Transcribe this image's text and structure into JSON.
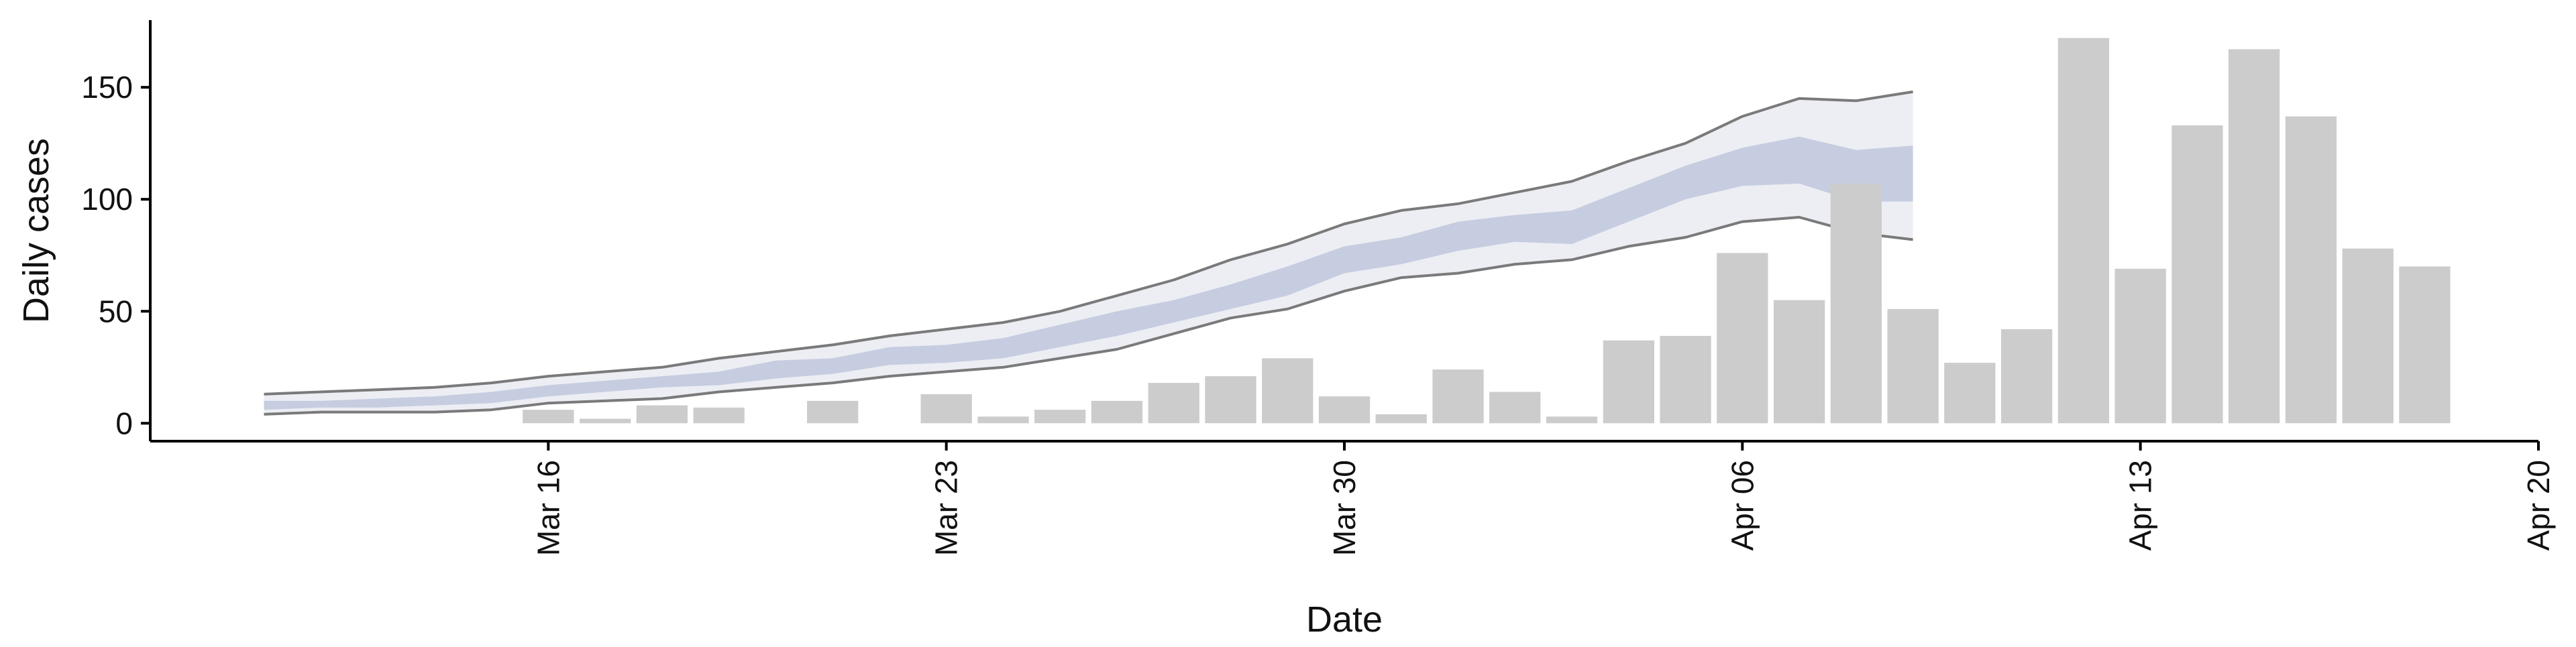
{
  "chart_data": {
    "type": "bar",
    "xlabel": "Date",
    "ylabel": "Daily cases",
    "xlim": [
      "2020-03-09",
      "2020-04-20"
    ],
    "ylim": [
      -8,
      180
    ],
    "x_ticks": [
      {
        "date": "2020-03-16",
        "label": "Mar 16"
      },
      {
        "date": "2020-03-23",
        "label": "Mar 23"
      },
      {
        "date": "2020-03-30",
        "label": "Mar 30"
      },
      {
        "date": "2020-04-06",
        "label": "Apr 06"
      },
      {
        "date": "2020-04-13",
        "label": "Apr 13"
      },
      {
        "date": "2020-04-20",
        "label": "Apr 20"
      }
    ],
    "y_ticks": [
      0,
      50,
      100,
      150
    ],
    "grid": false,
    "colors": {
      "bars": "#cccccc",
      "ribbon_outer": "#eceef4",
      "ribbon_inner": "#c7cde0",
      "bound_lines": "#7a7a7a",
      "axis": "#000000"
    },
    "daily_cases": [
      {
        "date": "2020-03-16",
        "value": 6
      },
      {
        "date": "2020-03-17",
        "value": 2
      },
      {
        "date": "2020-03-18",
        "value": 8
      },
      {
        "date": "2020-03-19",
        "value": 7
      },
      {
        "date": "2020-03-21",
        "value": 10
      },
      {
        "date": "2020-03-23",
        "value": 13
      },
      {
        "date": "2020-03-24",
        "value": 3
      },
      {
        "date": "2020-03-25",
        "value": 6
      },
      {
        "date": "2020-03-26",
        "value": 10
      },
      {
        "date": "2020-03-27",
        "value": 18
      },
      {
        "date": "2020-03-28",
        "value": 21
      },
      {
        "date": "2020-03-29",
        "value": 29
      },
      {
        "date": "2020-03-30",
        "value": 12
      },
      {
        "date": "2020-03-31",
        "value": 4
      },
      {
        "date": "2020-04-01",
        "value": 24
      },
      {
        "date": "2020-04-02",
        "value": 14
      },
      {
        "date": "2020-04-03",
        "value": 3
      },
      {
        "date": "2020-04-04",
        "value": 37
      },
      {
        "date": "2020-04-05",
        "value": 39
      },
      {
        "date": "2020-04-06",
        "value": 76
      },
      {
        "date": "2020-04-07",
        "value": 55
      },
      {
        "date": "2020-04-08",
        "value": 107
      },
      {
        "date": "2020-04-09",
        "value": 51
      },
      {
        "date": "2020-04-10",
        "value": 27
      },
      {
        "date": "2020-04-11",
        "value": 42
      },
      {
        "date": "2020-04-12",
        "value": 172
      },
      {
        "date": "2020-04-13",
        "value": 69
      },
      {
        "date": "2020-04-14",
        "value": 133
      },
      {
        "date": "2020-04-15",
        "value": 167
      },
      {
        "date": "2020-04-16",
        "value": 137
      },
      {
        "date": "2020-04-17",
        "value": 78
      },
      {
        "date": "2020-04-18",
        "value": 70
      }
    ],
    "estimate_band": {
      "dates": [
        "2020-03-11",
        "2020-03-12",
        "2020-03-13",
        "2020-03-14",
        "2020-03-15",
        "2020-03-16",
        "2020-03-17",
        "2020-03-18",
        "2020-03-19",
        "2020-03-20",
        "2020-03-21",
        "2020-03-22",
        "2020-03-23",
        "2020-03-24",
        "2020-03-25",
        "2020-03-26",
        "2020-03-27",
        "2020-03-28",
        "2020-03-29",
        "2020-03-30",
        "2020-03-31",
        "2020-04-01",
        "2020-04-02",
        "2020-04-03",
        "2020-04-04",
        "2020-04-05",
        "2020-04-06",
        "2020-04-07",
        "2020-04-08",
        "2020-04-09"
      ],
      "upper_90": [
        13,
        14,
        15,
        16,
        18,
        21,
        23,
        25,
        29,
        32,
        35,
        39,
        42,
        45,
        50,
        57,
        64,
        73,
        80,
        89,
        95,
        98,
        103,
        108,
        117,
        125,
        137,
        145,
        144,
        148
      ],
      "lower_90": [
        4,
        5,
        5,
        5,
        6,
        9,
        10,
        11,
        14,
        16,
        18,
        21,
        23,
        25,
        29,
        33,
        40,
        47,
        51,
        59,
        65,
        67,
        71,
        73,
        79,
        83,
        90,
        92,
        85,
        82
      ],
      "upper_50": [
        10,
        10,
        11,
        12,
        14,
        17,
        19,
        21,
        23,
        28,
        29,
        34,
        35,
        38,
        44,
        50,
        55,
        62,
        70,
        79,
        83,
        90,
        93,
        95,
        105,
        115,
        123,
        128,
        122,
        124
      ],
      "lower_50": [
        6,
        7,
        7,
        8,
        9,
        12,
        14,
        16,
        17,
        20,
        22,
        26,
        27,
        29,
        34,
        39,
        45,
        51,
        57,
        67,
        71,
        77,
        81,
        80,
        90,
        100,
        106,
        107,
        99,
        99
      ]
    }
  }
}
